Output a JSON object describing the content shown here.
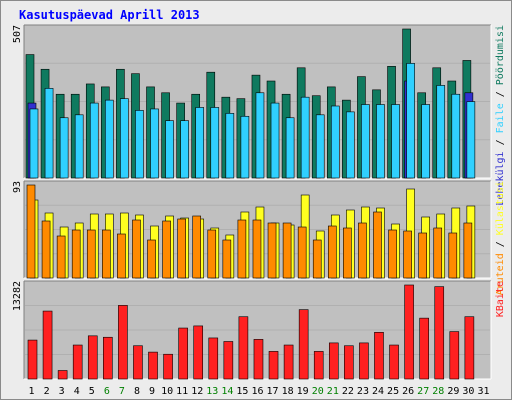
{
  "title": "Kasutuspäevad Aprill 2013",
  "colors": {
    "visits": "#0f7a5f",
    "pages": "#3030d0",
    "files": "#30d0ff",
    "hits": "#ffff20",
    "kbytes": "#ff2020",
    "sites": "#ff8a00",
    "weekend_label": "#008000",
    "weekday_label": "#000000",
    "panel_bg": "#c0c0c0"
  },
  "chart_data": [
    {
      "type": "bar",
      "title": "",
      "ymax_label": "507",
      "right_label": {
        "parts": [
          "Lehekülgi",
          " / ",
          "Faile",
          " / ",
          "Pöördumisi"
        ]
      },
      "categories": [
        "1",
        "2",
        "3",
        "4",
        "5",
        "6",
        "7",
        "8",
        "9",
        "10",
        "11",
        "12",
        "13",
        "14",
        "15",
        "16",
        "17",
        "18",
        "19",
        "20",
        "21",
        "22",
        "23",
        "24",
        "25",
        "26",
        "27",
        "28",
        "29",
        "30",
        "31"
      ],
      "weekend_days": [
        "6",
        "7",
        "13",
        "14",
        "20",
        "21",
        "27",
        "28"
      ],
      "ylim": [
        0,
        507
      ],
      "series": [
        {
          "name": "Pöördumisi",
          "values": [
            420,
            370,
            285,
            285,
            320,
            310,
            370,
            355,
            310,
            290,
            255,
            285,
            360,
            275,
            270,
            350,
            330,
            285,
            375,
            280,
            310,
            265,
            345,
            300,
            380,
            507,
            290,
            375,
            330,
            400,
            0
          ]
        },
        {
          "name": "Lehekülgi",
          "values": [
            255,
            0,
            0,
            0,
            0,
            0,
            0,
            0,
            0,
            0,
            0,
            0,
            0,
            0,
            0,
            0,
            0,
            0,
            0,
            0,
            0,
            0,
            0,
            0,
            0,
            330,
            0,
            0,
            0,
            290,
            0
          ]
        },
        {
          "name": "Faile",
          "values": [
            235,
            305,
            205,
            215,
            255,
            265,
            270,
            230,
            235,
            195,
            195,
            240,
            240,
            220,
            210,
            290,
            255,
            205,
            275,
            215,
            245,
            225,
            250,
            250,
            250,
            390,
            250,
            315,
            285,
            260,
            0
          ]
        }
      ]
    },
    {
      "type": "bar",
      "title": "",
      "ymax_label": "93",
      "right_label": {
        "parts": [
          "Aruteid",
          " / ",
          "Külastusi"
        ]
      },
      "categories": [
        "1",
        "2",
        "3",
        "4",
        "5",
        "6",
        "7",
        "8",
        "9",
        "10",
        "11",
        "12",
        "13",
        "14",
        "15",
        "16",
        "17",
        "18",
        "19",
        "20",
        "21",
        "22",
        "23",
        "24",
        "25",
        "26",
        "27",
        "28",
        "29",
        "30",
        "31"
      ],
      "ylim": [
        0,
        93
      ],
      "series": [
        {
          "name": "Külastusi",
          "values": [
            78,
            65,
            51,
            55,
            64,
            64,
            65,
            63,
            52,
            62,
            60,
            59,
            50,
            43,
            66,
            71,
            55,
            53,
            83,
            47,
            63,
            68,
            71,
            70,
            54,
            89,
            61,
            64,
            70,
            72,
            0
          ]
        },
        {
          "name": "Aruteid",
          "values": [
            93,
            57,
            42,
            48,
            48,
            48,
            44,
            58,
            38,
            57,
            59,
            62,
            48,
            38,
            58,
            58,
            55,
            55,
            51,
            38,
            52,
            50,
            55,
            66,
            48,
            47,
            45,
            50,
            45,
            55,
            0
          ]
        }
      ]
    },
    {
      "type": "bar",
      "title": "",
      "ymax_label": "13282",
      "right_label": {
        "parts": [
          "KBaite"
        ]
      },
      "categories": [
        "1",
        "2",
        "3",
        "4",
        "5",
        "6",
        "7",
        "8",
        "9",
        "10",
        "11",
        "12",
        "13",
        "14",
        "15",
        "16",
        "17",
        "18",
        "19",
        "20",
        "21",
        "22",
        "23",
        "24",
        "25",
        "26",
        "27",
        "28",
        "29",
        "30",
        "31"
      ],
      "ylim": [
        0,
        13282
      ],
      "series": [
        {
          "name": "KBaite",
          "values": [
            5500,
            9600,
            1200,
            4800,
            6100,
            5900,
            10400,
            4700,
            3800,
            3500,
            7200,
            7500,
            5800,
            5300,
            8800,
            5600,
            3900,
            4800,
            9800,
            3900,
            5100,
            4700,
            5100,
            6600,
            4800,
            13282,
            8600,
            13050,
            6700,
            8800,
            0
          ]
        }
      ]
    }
  ]
}
